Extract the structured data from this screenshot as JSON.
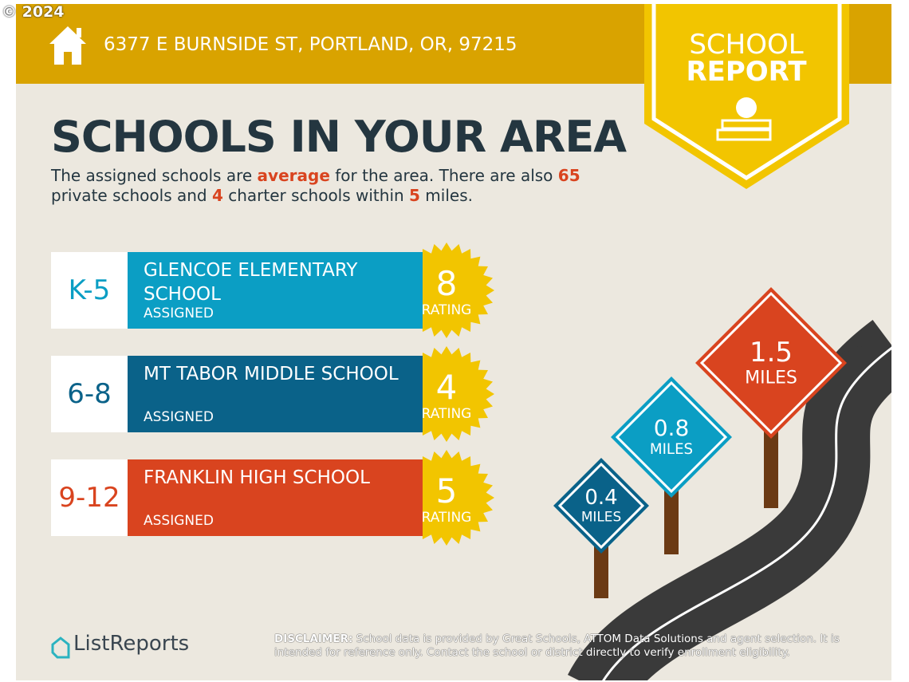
{
  "watermark": "© 2024",
  "header": {
    "address": "6377 E BURNSIDE ST, PORTLAND, OR, 97215"
  },
  "badge": {
    "line1": "SCHOOL",
    "line2": "REPORT"
  },
  "title": "SCHOOLS IN YOUR AREA",
  "summary": [
    "The assigned schools are ",
    "average",
    " for the area. There are also ",
    "65",
    " private schools and ",
    "4",
    " charter schools within ",
    "5",
    " miles."
  ],
  "schools": [
    {
      "grades": "K-5",
      "name": "GLENCOE ELEMENTARY SCHOOL",
      "status": "ASSIGNED",
      "rating": 8,
      "rating_label": "RATING"
    },
    {
      "grades": "6-8",
      "name": "MT TABOR MIDDLE SCHOOL",
      "status": "ASSIGNED",
      "rating": 4,
      "rating_label": "RATING"
    },
    {
      "grades": "9-12",
      "name": "FRANKLIN HIGH SCHOOL",
      "status": "ASSIGNED",
      "rating": 5,
      "rating_label": "RATING"
    }
  ],
  "distances": [
    {
      "value": 0.4,
      "unit": "MILES"
    },
    {
      "value": 0.8,
      "unit": "MILES"
    },
    {
      "value": 1.5,
      "unit": "MILES"
    }
  ],
  "logo": "ListReports",
  "disclaimer": {
    "label": "DISCLAIMER:",
    "text": "School data is provided by Great Schools, ATTOM Data Solutions and agent selection. It is intended for reference only. Contact the school or district directly to verify enrollment eligibility."
  }
}
